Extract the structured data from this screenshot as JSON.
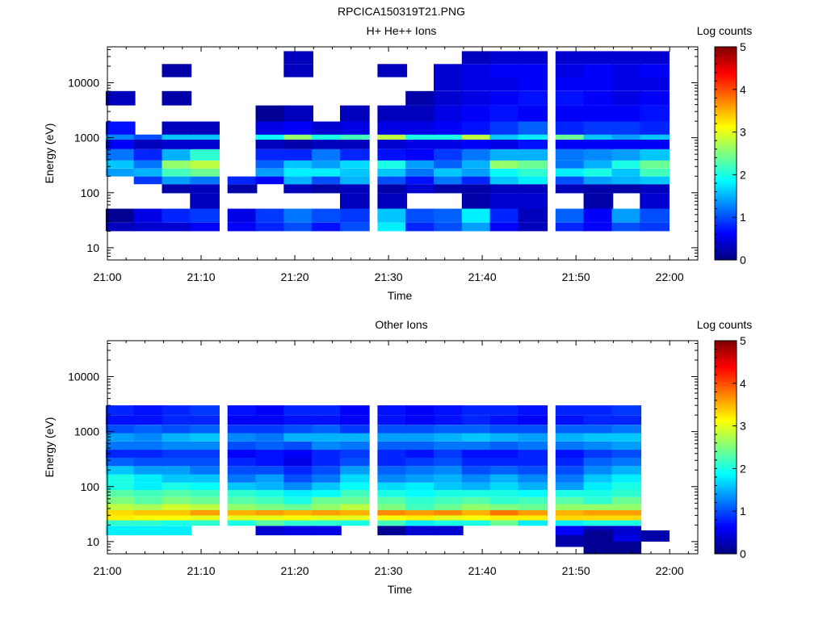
{
  "figure_title": "RPCICA150319T21.PNG",
  "colormap_stops": [
    "#00007f",
    "#0000ff",
    "#007fff",
    "#00ffff",
    "#7fff7f",
    "#ffff00",
    "#ff7f00",
    "#ff0000",
    "#7f0000"
  ],
  "chart_data": [
    {
      "type": "heatmap",
      "title": "H+ He++ Ions",
      "xlabel": "Time",
      "ylabel": "Energy (eV)",
      "yscale": "log",
      "ylim": [
        6,
        45000
      ],
      "xlim": [
        "21:00",
        "22:03"
      ],
      "xticks": [
        "21:00",
        "21:10",
        "21:20",
        "21:30",
        "21:40",
        "21:50",
        "22:00"
      ],
      "yticks": [
        "10",
        "100",
        "1000",
        "10000"
      ],
      "colorbar": {
        "label": "Log counts",
        "range": [
          0,
          5
        ],
        "ticks": [
          "0",
          "1",
          "2",
          "3",
          "4",
          "5"
        ]
      },
      "time_bins": [
        "21:01",
        "21:04",
        "21:07",
        "21:10",
        "21:14",
        "21:17",
        "21:20",
        "21:23",
        "21:26",
        "21:30",
        "21:33",
        "21:36",
        "21:39",
        "21:42",
        "21:45",
        "21:49",
        "21:52",
        "21:55",
        "21:58"
      ],
      "energy_bins": [
        25,
        33,
        80,
        120,
        170,
        230,
        330,
        450,
        850,
        1000,
        1300,
        3000,
        5000,
        10000,
        16000,
        30000
      ],
      "values": [
        [
          0.3,
          0.4,
          0.4,
          0.6,
          0.6,
          0.8,
          1.0,
          0.7,
          1.0,
          1.8,
          0.8,
          1.0,
          1.4,
          0.6,
          0.3,
          0.8,
          0.6,
          1.0,
          0.9
        ],
        [
          0.1,
          0.5,
          0.8,
          0.9,
          0.5,
          0.9,
          1.2,
          1.0,
          0.9,
          1.6,
          1.0,
          1.1,
          1.8,
          0.8,
          0.3,
          1.1,
          0.6,
          1.4,
          1.0
        ],
        [
          0,
          0,
          0,
          0.3,
          0,
          0,
          0,
          0,
          0.3,
          0.3,
          0,
          0,
          0.2,
          0.4,
          0.4,
          0,
          0.2,
          0,
          0.4
        ],
        [
          0,
          0,
          0.2,
          0.3,
          0.2,
          0,
          0.3,
          0.2,
          0.3,
          0.2,
          0.4,
          0.2,
          0.2,
          0.3,
          0.3,
          0.3,
          0.2,
          0.2,
          0.3
        ],
        [
          0,
          0.9,
          1.4,
          1.2,
          0.8,
          0.6,
          1.5,
          1.0,
          1.5,
          1.0,
          0.7,
          1.2,
          0.8,
          1.6,
          1.8,
          1.0,
          1.4,
          1.5,
          1.6
        ],
        [
          1.4,
          1.5,
          2.2,
          2.4,
          0,
          1.4,
          1.8,
          1.8,
          1.6,
          1.6,
          1.2,
          1.6,
          1.4,
          1.9,
          2.1,
          1.8,
          2.0,
          1.6,
          2.2
        ],
        [
          1.6,
          1.2,
          2.6,
          2.8,
          0,
          1.1,
          1.6,
          1.4,
          1.7,
          2.0,
          1.4,
          1.1,
          1.5,
          2.6,
          2.4,
          1.2,
          1.5,
          2.0,
          2.4
        ],
        [
          1.2,
          0.8,
          1.5,
          2.1,
          0,
          0.8,
          0.8,
          1.2,
          0.8,
          0.7,
          0.6,
          0.9,
          1.2,
          1.5,
          1.5,
          1.2,
          1.3,
          1.4,
          1.6
        ],
        [
          0.6,
          0.3,
          0.4,
          0.4,
          0,
          0.3,
          0.2,
          0.3,
          0.3,
          0.4,
          0.5,
          0.5,
          0.6,
          0.5,
          0.7,
          0.6,
          0.6,
          0.6,
          0.6
        ],
        [
          1.3,
          1.0,
          1.6,
          1.6,
          0,
          1.9,
          2.6,
          2.0,
          2.2,
          2.8,
          2.0,
          2.0,
          2.8,
          1.6,
          1.8,
          2.4,
          1.6,
          1.4,
          1.6
        ],
        [
          0.7,
          0,
          0.3,
          0.3,
          0,
          0.5,
          0.6,
          0.4,
          0.5,
          0.5,
          0.5,
          0.6,
          0.7,
          0.9,
          1.1,
          0.8,
          0.9,
          0.9,
          0.8
        ],
        [
          0,
          0,
          0,
          0,
          0,
          0.1,
          0.3,
          0,
          0.3,
          0.3,
          0.3,
          0.5,
          0.6,
          0.7,
          0.6,
          0.6,
          0.6,
          0.6,
          0.7
        ],
        [
          0.3,
          0,
          0.2,
          0,
          0,
          0,
          0,
          0,
          0,
          0,
          0.2,
          0.4,
          0.5,
          0.6,
          0.7,
          0.7,
          0.6,
          0.5,
          0.6
        ],
        [
          0,
          0,
          0,
          0,
          0,
          0,
          0,
          0,
          0,
          0,
          0,
          0.4,
          0.5,
          0.5,
          0.6,
          0.6,
          0.6,
          0.5,
          0.5
        ],
        [
          0,
          0,
          0.2,
          0,
          0,
          0,
          0.3,
          0,
          0,
          0.3,
          0,
          0.4,
          0.5,
          0.6,
          0.6,
          0.5,
          0.6,
          0.5,
          0.6
        ],
        [
          0,
          0,
          0,
          0,
          0,
          0,
          0.3,
          0,
          0,
          0,
          0,
          0,
          0.3,
          0.4,
          0.4,
          0.4,
          0.4,
          0.4,
          0.4
        ]
      ]
    },
    {
      "type": "heatmap",
      "title": "Other Ions",
      "xlabel": "Time",
      "ylabel": "Energy (eV)",
      "yscale": "log",
      "ylim": [
        6,
        45000
      ],
      "xlim": [
        "21:00",
        "22:03"
      ],
      "xticks": [
        "21:00",
        "21:10",
        "21:20",
        "21:30",
        "21:40",
        "21:50",
        "22:00"
      ],
      "yticks": [
        "10",
        "100",
        "1000",
        "10000"
      ],
      "colorbar": {
        "label": "Log counts",
        "range": [
          0,
          5
        ],
        "ticks": [
          "0",
          "1",
          "2",
          "3",
          "4",
          "5"
        ]
      },
      "time_bins": [
        "21:01",
        "21:04",
        "21:07",
        "21:10",
        "21:14",
        "21:17",
        "21:20",
        "21:23",
        "21:26",
        "21:30",
        "21:33",
        "21:36",
        "21:39",
        "21:42",
        "21:45",
        "21:49",
        "21:52",
        "21:55",
        "21:58"
      ],
      "energy_bins": [
        10,
        17,
        22,
        27,
        33,
        42,
        55,
        75,
        100,
        140,
        200,
        280,
        400,
        550,
        800,
        1100,
        1600,
        2400
      ],
      "values": [
        [
          0,
          0,
          0,
          0,
          0,
          0,
          0,
          0,
          0,
          0,
          0,
          0,
          0,
          0,
          0,
          0.2,
          0.1,
          0.5
        ],
        [
          1.8,
          1.8,
          1.8,
          0,
          0,
          0.4,
          0.5,
          0.5,
          0,
          0.1,
          0.4,
          0.4,
          0,
          0,
          0,
          0.6,
          0.3,
          0.4
        ],
        [
          2.1,
          2.1,
          2.0,
          2.1,
          2.0,
          2.3,
          2.1,
          2.1,
          2.0,
          2.2,
          1.8,
          2.0,
          2.0,
          2.4,
          1.8,
          1.8,
          2.0,
          2.0
        ],
        [
          3.2,
          3.1,
          3.1,
          3.0,
          3.0,
          3.0,
          3.1,
          3.0,
          3.0,
          3.1,
          3.2,
          3.0,
          3.1,
          3.2,
          3.2,
          3.3,
          3.3,
          3.3
        ],
        [
          3.3,
          3.4,
          3.4,
          3.6,
          3.5,
          3.6,
          3.5,
          3.6,
          3.5,
          3.7,
          3.6,
          3.7,
          3.5,
          3.8,
          3.6,
          3.5,
          3.6,
          3.6
        ],
        [
          2.8,
          2.7,
          2.9,
          2.8,
          2.6,
          2.5,
          2.4,
          2.6,
          2.8,
          2.5,
          2.2,
          2.4,
          2.6,
          2.5,
          2.4,
          2.6,
          2.6,
          2.6
        ],
        [
          2.5,
          2.3,
          2.5,
          2.4,
          2.3,
          2.2,
          2.0,
          2.4,
          2.4,
          2.3,
          2.1,
          2.2,
          2.3,
          2.1,
          2.2,
          2.3,
          2.1,
          2.4
        ],
        [
          2.3,
          2.2,
          2.3,
          2.2,
          2.1,
          2.0,
          1.8,
          1.9,
          2.2,
          2.0,
          1.9,
          2.0,
          2.0,
          2.0,
          1.9,
          2.0,
          2.0,
          2.1
        ],
        [
          2.0,
          1.8,
          2.0,
          1.9,
          1.6,
          1.5,
          1.3,
          1.6,
          1.9,
          1.7,
          1.8,
          1.6,
          1.5,
          1.7,
          1.5,
          1.4,
          1.8,
          2.0
        ],
        [
          2.0,
          1.8,
          1.6,
          1.6,
          1.2,
          1.4,
          1.0,
          1.2,
          1.7,
          1.3,
          1.4,
          1.5,
          1.3,
          1.5,
          1.3,
          1.2,
          1.6,
          1.8
        ],
        [
          1.6,
          1.4,
          1.4,
          1.2,
          1.0,
          1.0,
          0.8,
          1.0,
          1.4,
          1.1,
          1.2,
          1.3,
          1.0,
          1.1,
          1.0,
          1.0,
          1.3,
          1.5
        ],
        [
          1.1,
          1.0,
          1.0,
          1.0,
          0.8,
          0.7,
          0.5,
          0.8,
          1.0,
          0.8,
          0.9,
          1.0,
          0.8,
          0.8,
          0.8,
          0.8,
          1.1,
          1.2
        ],
        [
          0.8,
          0.8,
          0.9,
          0.9,
          0.6,
          0.7,
          0.6,
          0.8,
          0.9,
          0.8,
          0.7,
          0.9,
          0.7,
          0.7,
          0.8,
          0.7,
          0.9,
          1.0
        ],
        [
          1.2,
          1.2,
          1.3,
          1.3,
          1.0,
          1.1,
          1.0,
          1.3,
          1.2,
          1.1,
          1.1,
          1.2,
          1.2,
          1.1,
          1.2,
          1.2,
          1.3,
          1.4
        ],
        [
          1.4,
          1.3,
          1.5,
          1.6,
          1.3,
          1.2,
          1.5,
          1.5,
          1.5,
          1.4,
          1.4,
          1.5,
          1.6,
          1.5,
          1.4,
          1.5,
          1.6,
          1.6
        ],
        [
          1.0,
          1.1,
          1.0,
          1.1,
          0.9,
          0.9,
          1.0,
          1.1,
          0.9,
          1.0,
          1.0,
          1.1,
          1.1,
          1.0,
          1.0,
          1.1,
          1.1,
          1.2
        ],
        [
          0.7,
          0.7,
          0.8,
          0.8,
          0.6,
          0.6,
          0.7,
          0.7,
          0.6,
          0.7,
          0.6,
          0.7,
          0.8,
          0.7,
          0.6,
          0.7,
          0.8,
          0.8
        ],
        [
          0.8,
          0.7,
          0.8,
          0.9,
          0.7,
          0.6,
          0.8,
          0.8,
          0.6,
          0.7,
          0.6,
          0.7,
          0.8,
          0.8,
          0.7,
          0.8,
          0.8,
          0.9
        ],
        [
          0.3,
          0.4,
          0.4,
          0.5,
          0.3,
          0.3,
          0.4,
          0.5,
          0.3,
          0.4,
          0.3,
          0.4,
          0.5,
          0.4,
          0.3,
          0.4,
          0.4,
          0.5
        ]
      ],
      "extra_blocks": [
        {
          "time_bin": "21:52",
          "energy_range": [
            6,
            16
          ],
          "value": 0.1
        },
        {
          "time_bin": "21:55",
          "energy_range": [
            6,
            10
          ],
          "value": 0.1
        },
        {
          "time_bin": "21:58",
          "energy_range": [
            10,
            16
          ],
          "value": 0.2
        }
      ]
    }
  ]
}
